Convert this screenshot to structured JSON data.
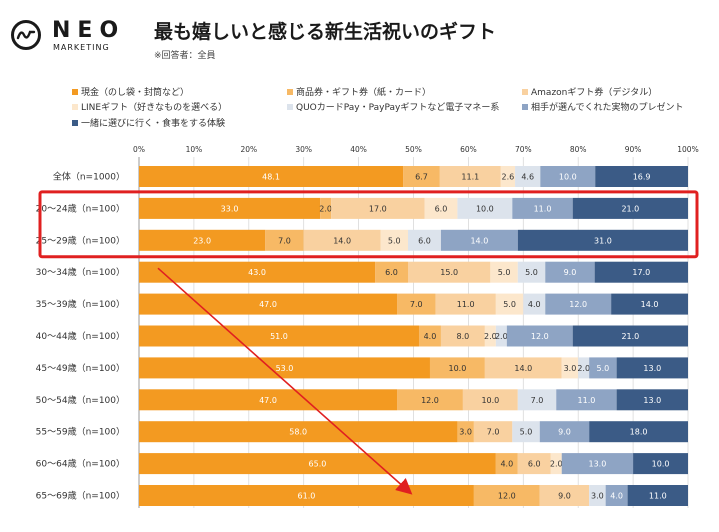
{
  "brand": {
    "name": "NEO",
    "tagline": "MARKETING"
  },
  "title": "最も嬉しいと感じる新生活祝いのギフト",
  "respondent_note": "※回答者：全員",
  "chart_data": {
    "type": "bar",
    "orientation": "horizontal",
    "stacked": "percent",
    "title": "最も嬉しいと感じる新生活祝いのギフト",
    "xlim": [
      0,
      100
    ],
    "x_ticks": [
      "0%",
      "10%",
      "20%",
      "30%",
      "40%",
      "50%",
      "60%",
      "70%",
      "80%",
      "90%",
      "100%"
    ],
    "grid": true,
    "legend_position": "top",
    "categories": [
      "全体（n=1000）",
      "20〜24歳（n=100）",
      "25〜29歳（n=100）",
      "30〜34歳（n=100）",
      "35〜39歳（n=100）",
      "40〜44歳（n=100）",
      "45〜49歳（n=100）",
      "50〜54歳（n=100）",
      "55〜59歳（n=100）",
      "60〜64歳（n=100）",
      "65〜69歳（n=100）"
    ],
    "series": [
      {
        "name": "現金（のし袋・封筒など）",
        "color": "#F39A21",
        "values": [
          48.1,
          33.0,
          23.0,
          43.0,
          47.0,
          51.0,
          53.0,
          47.0,
          58.0,
          65.0,
          61.0
        ]
      },
      {
        "name": "商品券・ギフト券（紙・カード）",
        "color": "#F7B965",
        "values": [
          6.7,
          2.0,
          7.0,
          6.0,
          7.0,
          4.0,
          10.0,
          12.0,
          3.0,
          4.0,
          12.0
        ]
      },
      {
        "name": "Amazonギフト券（デジタル）",
        "color": "#F9D1A0",
        "values": [
          11.1,
          17.0,
          14.0,
          15.0,
          11.0,
          8.0,
          14.0,
          10.0,
          7.0,
          6.0,
          9.0
        ]
      },
      {
        "name": "LINEギフト（好きなものを選べる）",
        "color": "#FCE7CC",
        "values": [
          2.6,
          6.0,
          5.0,
          5.0,
          5.0,
          2.0,
          3.0,
          0,
          0,
          2.0,
          0
        ]
      },
      {
        "name": "QUOカードPay・PayPayギフトなど電子マネー系",
        "color": "#DCE3EC",
        "values": [
          4.6,
          10.0,
          6.0,
          5.0,
          4.0,
          2.0,
          2.0,
          7.0,
          5.0,
          0,
          3.0
        ]
      },
      {
        "name": "相手が選んでくれた実物のプレゼント",
        "color": "#8EA4C4",
        "values": [
          10.0,
          11.0,
          14.0,
          9.0,
          12.0,
          12.0,
          5.0,
          11.0,
          9.0,
          13.0,
          4.0
        ]
      },
      {
        "name": "一緒に選びに行く・食事をする体験",
        "color": "#3B5B86",
        "values": [
          16.9,
          21.0,
          31.0,
          17.0,
          14.0,
          21.0,
          13.0,
          13.0,
          18.0,
          10.0,
          11.0
        ]
      }
    ],
    "annotations": [
      {
        "type": "highlight-box",
        "rows": [
          "20〜24歳（n=100）",
          "25〜29歳（n=100）"
        ],
        "color": "#E02020"
      },
      {
        "type": "arrow",
        "from": "30〜34歳（n=100）",
        "to": "65〜69歳（n=100）",
        "color": "#E02020"
      }
    ]
  }
}
